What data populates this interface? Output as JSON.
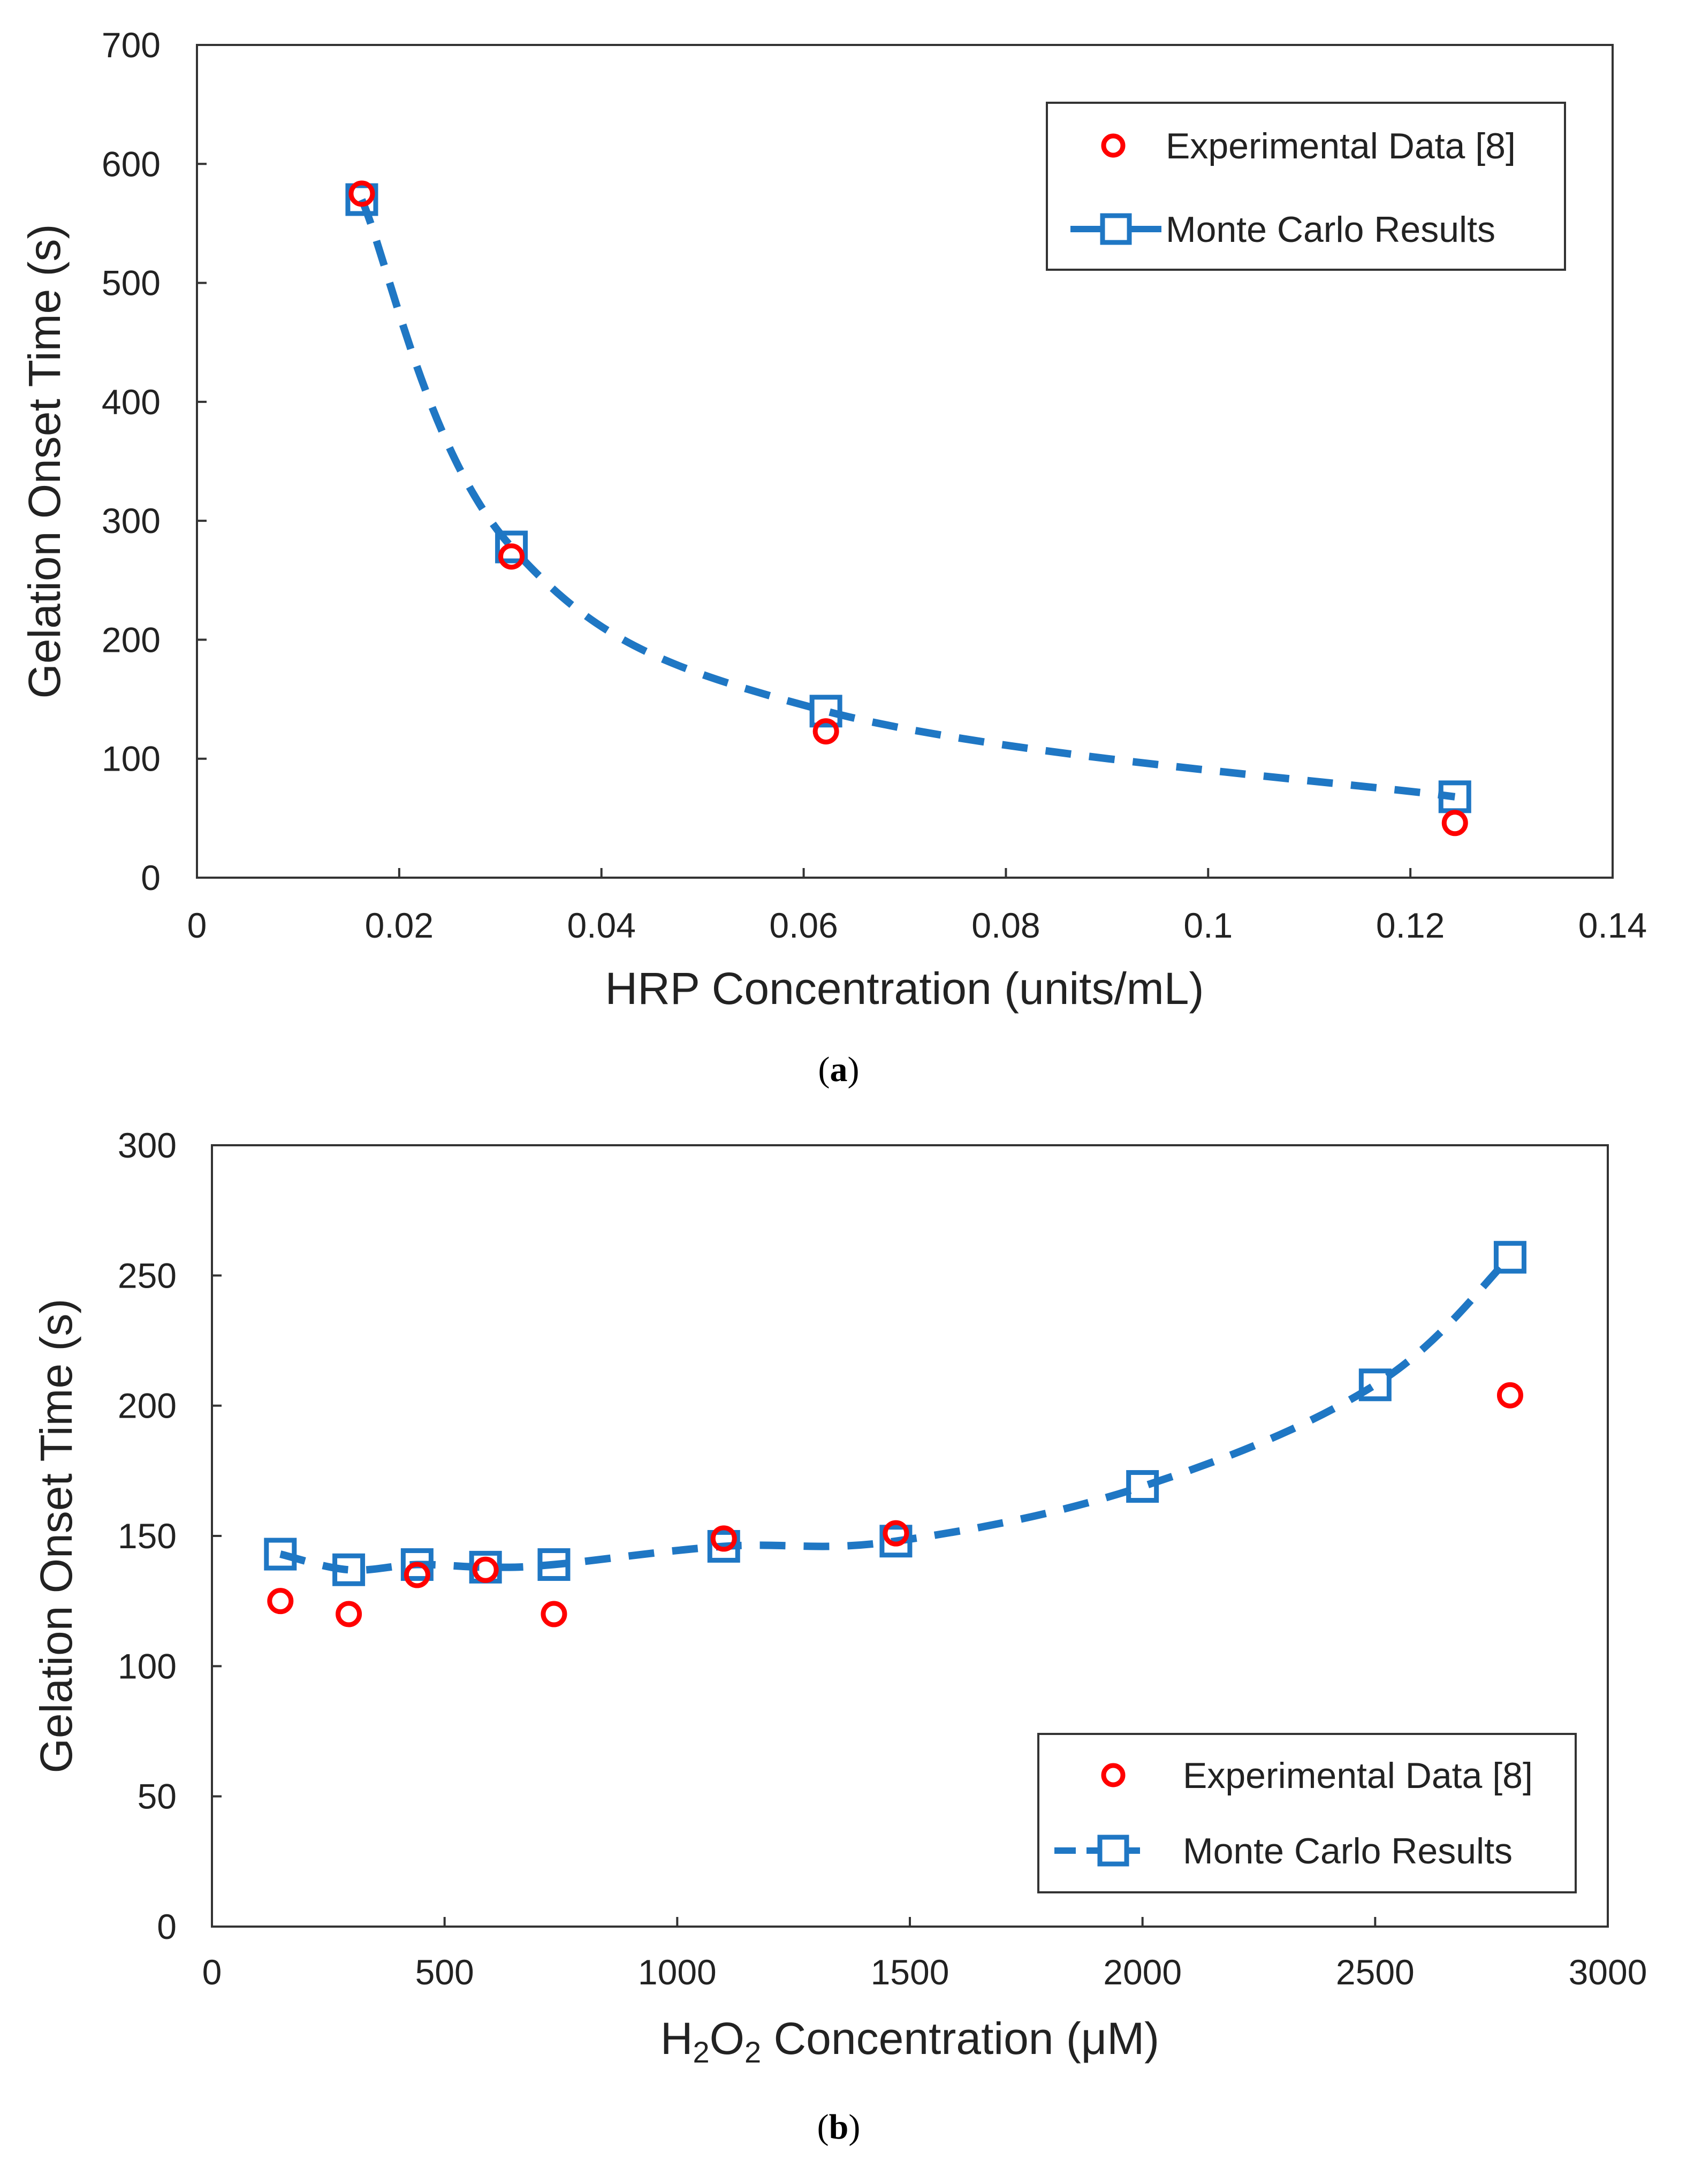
{
  "colors": {
    "experimental": "#ff0000",
    "monte_carlo": "#1f77c4",
    "axis": "#333333"
  },
  "chart_data": [
    {
      "type": "scatter",
      "panel_caption_open": "(",
      "panel_caption_letter": "a",
      "panel_caption_close": ")",
      "xlabel": "HRP Concentration (units/mL)",
      "ylabel": "Gelation Onset Time (s)",
      "xlim": [
        0,
        0.14
      ],
      "ylim": [
        0,
        700
      ],
      "xticks": [
        0,
        0.02,
        0.04,
        0.06,
        0.08,
        0.1,
        0.12,
        0.14
      ],
      "xtick_labels": [
        "0",
        "0.02",
        "0.04",
        "0.06",
        "0.08",
        "0.1",
        "0.12",
        "0.14"
      ],
      "yticks": [
        0,
        100,
        200,
        300,
        400,
        500,
        600,
        700
      ],
      "ytick_labels": [
        "0",
        "100",
        "200",
        "300",
        "400",
        "500",
        "600",
        "700"
      ],
      "legend_position": "top-right",
      "series": [
        {
          "name": "Experimental Data [8]",
          "marker": "circle",
          "x": [
            0.0163,
            0.0311,
            0.0622,
            0.1244
          ],
          "y": [
            575,
            270,
            123,
            46
          ]
        },
        {
          "name": "Monte Carlo Results",
          "marker": "square",
          "line": "dashed",
          "x": [
            0.0163,
            0.0311,
            0.0622,
            0.1244
          ],
          "y": [
            570,
            278,
            140,
            68
          ]
        }
      ]
    },
    {
      "type": "scatter",
      "panel_caption_open": "(",
      "panel_caption_letter": "b",
      "panel_caption_close": ")",
      "xlabel_pre": "H",
      "xlabel_sub1": "2",
      "xlabel_mid": "O",
      "xlabel_sub2": "2",
      "xlabel_post": " Concentration (μM)",
      "ylabel": "Gelation Onset Time (s)",
      "xlim": [
        0,
        3000
      ],
      "ylim": [
        0,
        300
      ],
      "xticks": [
        0,
        500,
        1000,
        1500,
        2000,
        2500,
        3000
      ],
      "xtick_labels": [
        "0",
        "500",
        "1000",
        "1500",
        "2000",
        "2500",
        "3000"
      ],
      "yticks": [
        0,
        50,
        100,
        150,
        200,
        250,
        300
      ],
      "ytick_labels": [
        "0",
        "50",
        "100",
        "150",
        "200",
        "250",
        "300"
      ],
      "legend_position": "bottom-right",
      "series": [
        {
          "name": "Experimental Data [8]",
          "marker": "circle",
          "x": [
            147,
            294,
            441,
            588,
            735,
            1100,
            1470,
            2790
          ],
          "y": [
            125,
            120,
            135,
            137,
            120,
            149,
            151,
            204
          ]
        },
        {
          "name": "Monte Carlo Results",
          "marker": "square",
          "line": "dashed",
          "x": [
            147,
            294,
            441,
            588,
            735,
            1100,
            1470,
            2000,
            2500,
            2790
          ],
          "y": [
            143,
            137,
            139,
            138,
            139,
            146,
            148,
            169,
            208,
            257
          ]
        }
      ]
    }
  ]
}
